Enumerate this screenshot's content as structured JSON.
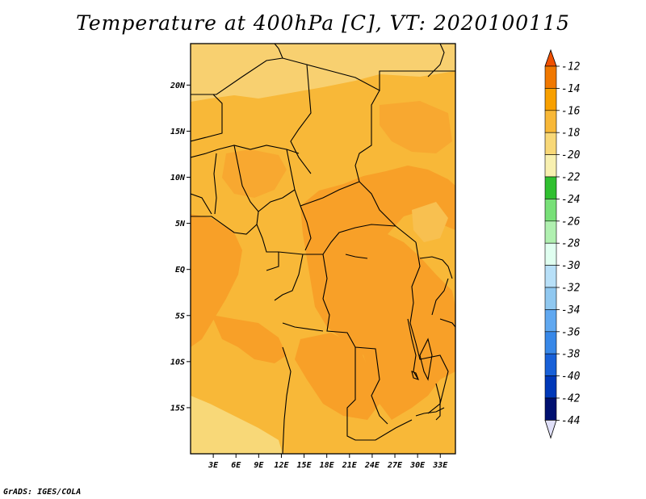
{
  "title": "Temperature at 400hPa [C], VT: 2020100115",
  "credit": "GrADS: IGES/COLA",
  "map": {
    "lat_ticks": [
      "20N",
      "15N",
      "10N",
      "5N",
      "EQ",
      "5S",
      "10S",
      "15S"
    ],
    "lat_values": [
      20,
      15,
      10,
      5,
      0,
      -5,
      -10,
      -15
    ],
    "lon_ticks": [
      "3E",
      "6E",
      "9E",
      "12E",
      "15E",
      "18E",
      "21E",
      "24E",
      "27E",
      "30E",
      "33E"
    ],
    "lon_values": [
      3,
      6,
      9,
      12,
      15,
      18,
      21,
      24,
      27,
      30,
      33
    ],
    "lon_range": [
      0,
      35
    ],
    "lat_range": [
      -20,
      24.5
    ]
  },
  "colorbar": {
    "labels": [
      "-12",
      "-14",
      "-16",
      "-18",
      "-20",
      "-22",
      "-24",
      "-26",
      "-28",
      "-30",
      "-32",
      "-34",
      "-36",
      "-38",
      "-40",
      "-42",
      "-44"
    ],
    "colors": [
      "#f05000",
      "#f07800",
      "#f8a000",
      "#f8b838",
      "#f8d878",
      "#f8f0b0",
      "#30c030",
      "#78e078",
      "#b0f0b0",
      "#e0fff0",
      "#b8e0f8",
      "#90c8f0",
      "#60a8f0",
      "#3888e8",
      "#1860d8",
      "#0038b8",
      "#001070"
    ],
    "top_color": "#f05000",
    "bottom_color": "#e0e0f8"
  }
}
